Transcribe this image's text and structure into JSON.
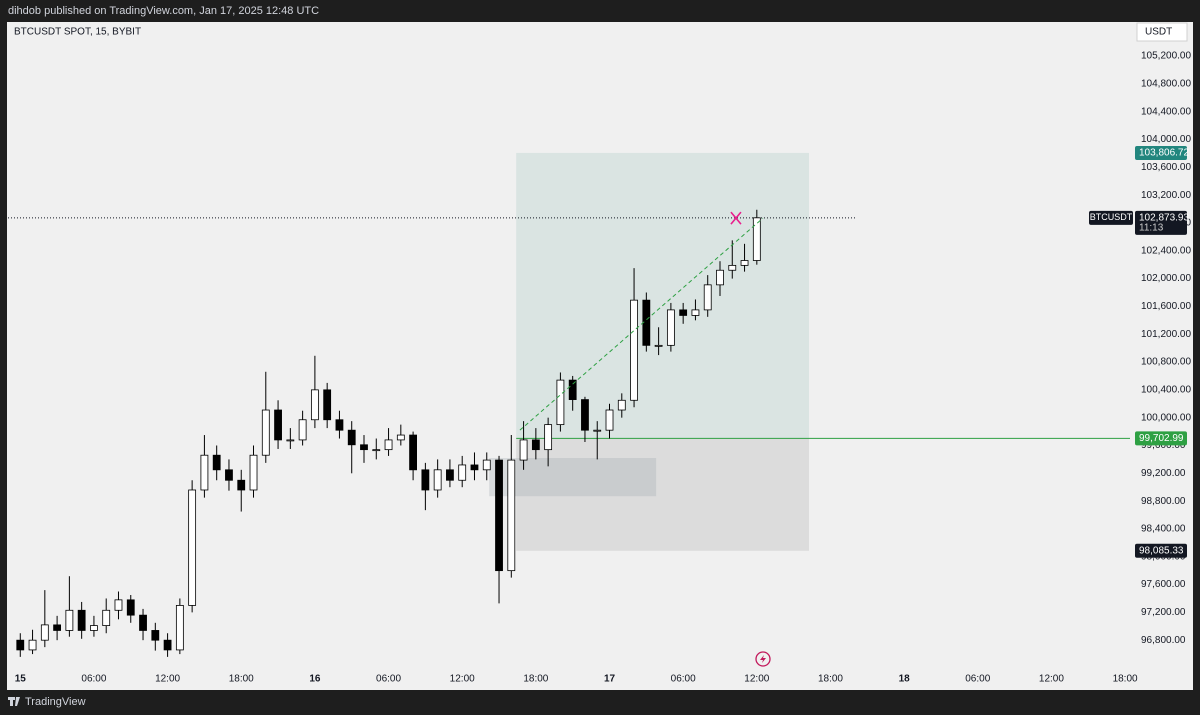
{
  "header": "dihdob published on TradingView.com, Jan 17, 2025 12:48 UTC",
  "footer": "TradingView",
  "chart_data": {
    "type": "candlestick",
    "title": "BTCUSDT SPOT, 15, BYBIT",
    "currency": "USDT",
    "up_color": "#ffffff",
    "down_color": "#000000",
    "grid": false,
    "x": [
      0,
      1,
      2,
      3,
      4,
      5,
      6,
      7,
      8,
      9,
      10,
      11,
      12,
      13,
      14,
      15,
      16,
      17,
      18,
      19,
      20,
      21,
      22,
      23,
      24,
      25,
      26,
      27,
      28,
      29,
      30,
      31,
      32,
      33,
      34,
      35,
      36,
      37,
      38,
      39,
      40,
      41,
      42,
      43,
      44,
      45,
      46,
      47,
      48,
      49,
      50,
      51,
      52,
      53,
      54,
      55,
      56,
      57,
      58,
      59,
      60
    ],
    "open": [
      96800,
      96660,
      96800,
      97020,
      96940,
      97230,
      96940,
      97010,
      97230,
      97380,
      97160,
      96940,
      96800,
      96660,
      97300,
      98960,
      99460,
      99250,
      99100,
      98960,
      99460,
      100110,
      99680,
      99680,
      99970,
      100400,
      99970,
      99820,
      99610,
      99540,
      99540,
      99680,
      99750,
      99250,
      98960,
      99250,
      99100,
      99320,
      99250,
      99390,
      97800,
      99390,
      99680,
      99540,
      99900,
      100540,
      100260,
      99820,
      99820,
      100110,
      100250,
      101690,
      101040,
      101040,
      101550,
      101470,
      101550,
      101910,
      102120,
      102190,
      102260
    ],
    "high": [
      96900,
      96950,
      97520,
      97150,
      97720,
      97350,
      97150,
      97400,
      97500,
      97450,
      97250,
      97050,
      96900,
      97400,
      99100,
      99750,
      99600,
      99400,
      99250,
      99600,
      100660,
      100250,
      99850,
      100100,
      100890,
      100500,
      100100,
      99950,
      99750,
      99700,
      99850,
      99900,
      99800,
      99350,
      99400,
      99400,
      99450,
      99500,
      99500,
      99450,
      99750,
      99950,
      99850,
      100000,
      100650,
      100600,
      100300,
      99950,
      100200,
      100350,
      102150,
      101800,
      101300,
      101650,
      101650,
      101700,
      102050,
      102250,
      102550,
      102500,
      102990
    ],
    "low": [
      96560,
      96600,
      96700,
      96800,
      96850,
      96820,
      96850,
      96900,
      97100,
      97050,
      96800,
      96650,
      96560,
      96600,
      97200,
      98850,
      99100,
      98950,
      98650,
      98850,
      99350,
      99550,
      99550,
      99600,
      99850,
      99850,
      99700,
      99200,
      99350,
      99400,
      99450,
      99600,
      99100,
      98670,
      98850,
      99000,
      99000,
      99100,
      99100,
      97330,
      97700,
      99250,
      99400,
      99300,
      99800,
      100100,
      99650,
      99400,
      99700,
      100000,
      100150,
      100950,
      100900,
      100950,
      101350,
      101400,
      101450,
      101750,
      102000,
      102100,
      102200
    ],
    "close": [
      96660,
      96800,
      97020,
      96940,
      97230,
      96940,
      97010,
      97230,
      97380,
      97160,
      96940,
      96800,
      96660,
      97300,
      98960,
      99460,
      99250,
      99100,
      98960,
      99460,
      100110,
      99680,
      99680,
      99970,
      100400,
      99970,
      99820,
      99610,
      99540,
      99540,
      99680,
      99750,
      99250,
      98960,
      99250,
      99100,
      99320,
      99250,
      99390,
      97800,
      99390,
      99680,
      99540,
      99900,
      100540,
      100260,
      99820,
      99820,
      100110,
      100250,
      101690,
      101040,
      101040,
      101550,
      101470,
      101550,
      101910,
      102120,
      102190,
      102260,
      102873.93
    ],
    "xlim": [
      -1,
      90.4
    ],
    "ylim": [
      96400,
      105690
    ],
    "xticks": [
      {
        "value": 0,
        "label": "15"
      },
      {
        "value": 6,
        "label": "06:00"
      },
      {
        "value": 12,
        "label": "12:00"
      },
      {
        "value": 18,
        "label": "18:00"
      },
      {
        "value": 24,
        "label": "16"
      },
      {
        "value": 30,
        "label": "06:00"
      },
      {
        "value": 36,
        "label": "12:00"
      },
      {
        "value": 42,
        "label": "18:00"
      },
      {
        "value": 48,
        "label": "17"
      },
      {
        "value": 54,
        "label": "06:00"
      },
      {
        "value": 60,
        "label": "12:00"
      },
      {
        "value": 66,
        "label": "18:00"
      },
      {
        "value": 72,
        "label": "18"
      },
      {
        "value": 78,
        "label": "06:00"
      },
      {
        "value": 84,
        "label": "12:00"
      },
      {
        "value": 90,
        "label": "18:00"
      }
    ],
    "yticks": [
      {
        "value": 96800,
        "label": "96,800.00"
      },
      {
        "value": 97200,
        "label": "97,200.00"
      },
      {
        "value": 97600,
        "label": "97,600.00"
      },
      {
        "value": 98000,
        "label": "98,000.00"
      },
      {
        "value": 98400,
        "label": "98,400.00"
      },
      {
        "value": 98800,
        "label": "98,800.00"
      },
      {
        "value": 99200,
        "label": "99,200.00"
      },
      {
        "value": 99600,
        "label": "99,600.00"
      },
      {
        "value": 100000,
        "label": "100,000.00"
      },
      {
        "value": 100400,
        "label": "100,400.00"
      },
      {
        "value": 100800,
        "label": "100,800.00"
      },
      {
        "value": 101200,
        "label": "101,200.00"
      },
      {
        "value": 101600,
        "label": "101,600.00"
      },
      {
        "value": 102000,
        "label": "102,000.00"
      },
      {
        "value": 102400,
        "label": "102,400.00"
      },
      {
        "value": 102800,
        "label": "102,800.00"
      },
      {
        "value": 103200,
        "label": "103,200.00"
      },
      {
        "value": 103600,
        "label": "103,600.00"
      },
      {
        "value": 104000,
        "label": "104,000.00"
      },
      {
        "value": 104400,
        "label": "104,400.00"
      },
      {
        "value": 104800,
        "label": "104,800.00"
      },
      {
        "value": 105200,
        "label": "105,200.00"
      }
    ],
    "position": {
      "x": [
        40.4,
        64.25
      ],
      "target": {
        "value": 103806.72,
        "label": "103,806.72",
        "color": "#22867e"
      },
      "entry": {
        "value": 99702.99,
        "label": "99,702.99",
        "color": "#2ea043"
      },
      "stop": {
        "value": 98085.33,
        "label": "98,085.33",
        "color": "#131722"
      }
    },
    "last_price": {
      "name": "BTCUSDT",
      "value": 102873.93,
      "label": "102,873.93",
      "countdown": "11:13",
      "color": "#131722"
    },
    "zone": {
      "x": [
        38.2,
        51.8
      ],
      "y": [
        98870,
        99420
      ]
    },
    "trend_line": {
      "x": [
        40.7,
        60.5
      ],
      "y": [
        99820,
        102870
      ],
      "color": "#2ea043"
    },
    "cross_marker": {
      "x": 58.3,
      "y": 102870,
      "color": "#e91e8c"
    }
  }
}
